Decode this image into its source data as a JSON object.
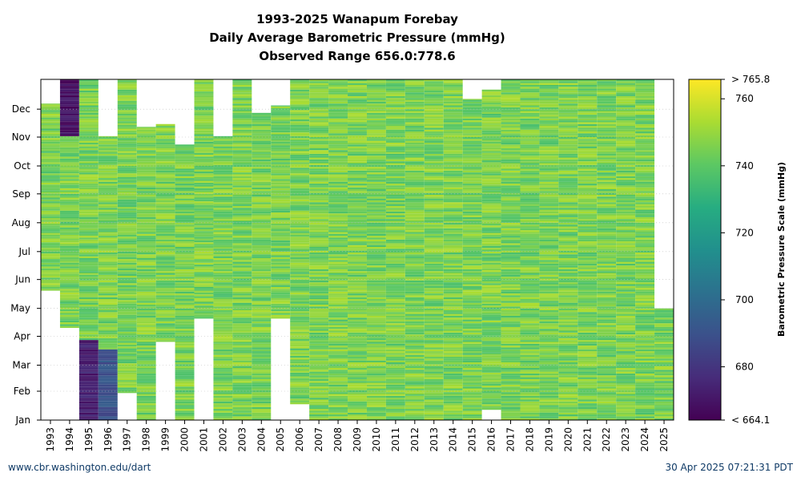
{
  "chart_data": {
    "type": "heatmap",
    "title_lines": [
      "1993-2025 Wanapum Forebay",
      "Daily Average Barometric Pressure (mmHg)",
      "Observed Range 656.0:778.6"
    ],
    "x_categories": [
      "1993",
      "1994",
      "1995",
      "1996",
      "1997",
      "1998",
      "1999",
      "2000",
      "2001",
      "2002",
      "2003",
      "2004",
      "2005",
      "2006",
      "2007",
      "2008",
      "2009",
      "2010",
      "2011",
      "2012",
      "2013",
      "2014",
      "2015",
      "2016",
      "2017",
      "2018",
      "2019",
      "2020",
      "2021",
      "2022",
      "2023",
      "2024",
      "2025"
    ],
    "y_categories": [
      "Jan",
      "Feb",
      "Mar",
      "Apr",
      "May",
      "Jun",
      "Jul",
      "Aug",
      "Sep",
      "Oct",
      "Nov",
      "Dec"
    ],
    "colorbar": {
      "label": "Barometric Pressure Scale (mmHg)",
      "min": 664.1,
      "max": 765.8,
      "min_label": "< 664.1",
      "max_label": "> 765.8",
      "ticks": [
        "760",
        "740",
        "720",
        "700",
        "680"
      ],
      "tick_values": [
        760,
        740,
        720,
        700,
        680
      ],
      "colormap": "viridis"
    },
    "grid": true,
    "typical_value": 745,
    "coverage": [
      {
        "year": "1993",
        "start_day": 0,
        "end_day": 0,
        "gaps": []
      },
      {
        "year": "1994",
        "start_day": 1,
        "end_day": 1,
        "gaps": []
      },
      {
        "year": "1995",
        "start_day": 1,
        "end_day": 1,
        "gaps": []
      },
      {
        "year": "1996",
        "start_day": 1,
        "end_day": 1,
        "gaps": []
      },
      {
        "year": "1997",
        "start_day": 1,
        "end_day": 1,
        "gaps": []
      },
      {
        "year": "1998",
        "start_day": 1,
        "end_day": 1,
        "gaps": []
      },
      {
        "year": "1999",
        "start_day": 1,
        "end_day": 1,
        "gaps": []
      },
      {
        "year": "2000",
        "start_day": 1,
        "end_day": 1,
        "gaps": []
      },
      {
        "year": "2001",
        "start_day": 1,
        "end_day": 1,
        "gaps": []
      },
      {
        "year": "2002",
        "start_day": 1,
        "end_day": 1,
        "gaps": []
      },
      {
        "year": "2003",
        "start_day": 1,
        "end_day": 1,
        "gaps": []
      },
      {
        "year": "2004",
        "start_day": 1,
        "end_day": 1,
        "gaps": []
      },
      {
        "year": "2005",
        "start_day": 1,
        "end_day": 1,
        "gaps": []
      },
      {
        "year": "2006",
        "start_day": 1,
        "end_day": 1,
        "gaps": []
      },
      {
        "year": "2007",
        "start_day": 1,
        "end_day": 1,
        "gaps": []
      },
      {
        "year": "2008",
        "start_day": 1,
        "end_day": 1,
        "gaps": []
      },
      {
        "year": "2009",
        "start_day": 1,
        "end_day": 1,
        "gaps": []
      },
      {
        "year": "2010",
        "start_day": 1,
        "end_day": 1,
        "gaps": []
      },
      {
        "year": "2011",
        "start_day": 1,
        "end_day": 1,
        "gaps": []
      },
      {
        "year": "2012",
        "start_day": 1,
        "end_day": 1,
        "gaps": []
      },
      {
        "year": "2013",
        "start_day": 1,
        "end_day": 1,
        "gaps": []
      },
      {
        "year": "2014",
        "start_day": 1,
        "end_day": 1,
        "gaps": []
      },
      {
        "year": "2015",
        "start_day": 1,
        "end_day": 1,
        "gaps": []
      },
      {
        "year": "2016",
        "start_day": 1,
        "end_day": 1,
        "gaps": []
      },
      {
        "year": "2017",
        "start_day": 1,
        "end_day": 1,
        "gaps": []
      },
      {
        "year": "2018",
        "start_day": 1,
        "end_day": 1,
        "gaps": []
      },
      {
        "year": "2019",
        "start_day": 1,
        "end_day": 1,
        "gaps": []
      },
      {
        "year": "2020",
        "start_day": 1,
        "end_day": 1,
        "gaps": []
      },
      {
        "year": "2021",
        "start_day": 1,
        "end_day": 1,
        "gaps": []
      },
      {
        "year": "2022",
        "start_day": 1,
        "end_day": 1,
        "gaps": []
      },
      {
        "year": "2023",
        "start_day": 1,
        "end_day": 1,
        "gaps": []
      },
      {
        "year": "2024",
        "start_day": 1,
        "end_day": 1,
        "gaps": []
      },
      {
        "year": "2025",
        "start_day": 1,
        "end_day": 1,
        "gaps": []
      }
    ],
    "coverage_days": [
      {
        "year": "1993",
        "first_day": 140,
        "last_day": 340
      },
      {
        "year": "1994",
        "first_day": 100,
        "last_day": 366
      },
      {
        "year": "1995",
        "first_day": 1,
        "last_day": 366
      },
      {
        "year": "1996",
        "first_day": 1,
        "last_day": 305
      },
      {
        "year": "1997",
        "first_day": 30,
        "last_day": 366
      },
      {
        "year": "1998",
        "first_day": 1,
        "last_day": 315
      },
      {
        "year": "1999",
        "first_day": 85,
        "last_day": 318
      },
      {
        "year": "2000",
        "first_day": 1,
        "last_day": 296
      },
      {
        "year": "2001",
        "first_day": 110,
        "last_day": 366
      },
      {
        "year": "2002",
        "first_day": 1,
        "last_day": 305
      },
      {
        "year": "2003",
        "first_day": 1,
        "last_day": 366
      },
      {
        "year": "2004",
        "first_day": 1,
        "last_day": 330
      },
      {
        "year": "2005",
        "first_day": 110,
        "last_day": 338
      },
      {
        "year": "2006",
        "first_day": 18,
        "last_day": 366
      },
      {
        "year": "2007",
        "first_day": 1,
        "last_day": 366
      },
      {
        "year": "2008",
        "first_day": 1,
        "last_day": 366
      },
      {
        "year": "2009",
        "first_day": 1,
        "last_day": 366
      },
      {
        "year": "2010",
        "first_day": 1,
        "last_day": 366
      },
      {
        "year": "2011",
        "first_day": 1,
        "last_day": 366
      },
      {
        "year": "2012",
        "first_day": 1,
        "last_day": 366
      },
      {
        "year": "2013",
        "first_day": 1,
        "last_day": 366
      },
      {
        "year": "2014",
        "first_day": 1,
        "last_day": 366
      },
      {
        "year": "2015",
        "first_day": 1,
        "last_day": 345
      },
      {
        "year": "2016",
        "first_day": 12,
        "last_day": 355
      },
      {
        "year": "2017",
        "first_day": 1,
        "last_day": 366
      },
      {
        "year": "2018",
        "first_day": 1,
        "last_day": 366
      },
      {
        "year": "2019",
        "first_day": 1,
        "last_day": 366
      },
      {
        "year": "2020",
        "first_day": 1,
        "last_day": 366
      },
      {
        "year": "2021",
        "first_day": 1,
        "last_day": 366
      },
      {
        "year": "2022",
        "first_day": 1,
        "last_day": 366
      },
      {
        "year": "2023",
        "first_day": 1,
        "last_day": 366
      },
      {
        "year": "2024",
        "first_day": 1,
        "last_day": 366
      },
      {
        "year": "2025",
        "first_day": 1,
        "last_day": 120
      }
    ],
    "low_pressure_periods": [
      {
        "year": "1994",
        "first_day": 305,
        "last_day": 366,
        "approx_value": 668
      },
      {
        "year": "1995",
        "first_day": 1,
        "last_day": 85,
        "approx_value": 673
      },
      {
        "year": "1996",
        "first_day": 1,
        "last_day": 75,
        "approx_value": 690
      }
    ]
  },
  "footer": {
    "left": "www.cbr.washington.edu/dart",
    "right": "30 Apr 2025 07:21:31 PDT"
  }
}
